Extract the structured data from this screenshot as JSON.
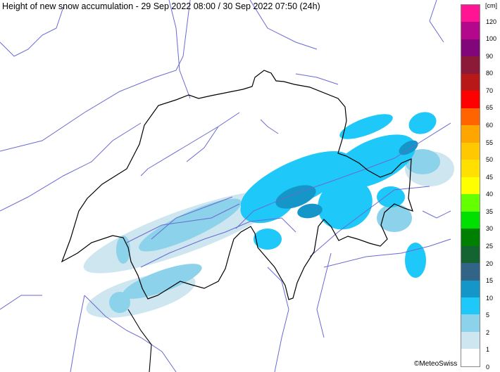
{
  "title": "Height of new snow accumulation - 29 Sep 2022 08:00 / 30 Sep 2022 07:50 (24h)",
  "credit": "©MeteoSwiss",
  "legend": {
    "unit": "[cm]",
    "bins_top_to_bottom": [
      {
        "range": ">120",
        "color": "#ff1493"
      },
      {
        "range": "100-120",
        "color": "#b4088c"
      },
      {
        "range": "90-100",
        "color": "#80067a"
      },
      {
        "range": "80-90",
        "color": "#8b1a38"
      },
      {
        "range": "70-80",
        "color": "#b81818"
      },
      {
        "range": "65-70",
        "color": "#ff0000"
      },
      {
        "range": "60-65",
        "color": "#ff6400"
      },
      {
        "range": "55-60",
        "color": "#ffa500"
      },
      {
        "range": "50-55",
        "color": "#ffc800"
      },
      {
        "range": "45-50",
        "color": "#ffe000"
      },
      {
        "range": "40-45",
        "color": "#ffff00"
      },
      {
        "range": "35-40",
        "color": "#64ff00"
      },
      {
        "range": "30-35",
        "color": "#00e000"
      },
      {
        "range": "25-30",
        "color": "#008000"
      },
      {
        "range": "20-25",
        "color": "#146432"
      },
      {
        "range": "15-20",
        "color": "#326488"
      },
      {
        "range": "10-15",
        "color": "#1496c8"
      },
      {
        "range": "5-10",
        "color": "#1ec8f8"
      },
      {
        "range": "2-5",
        "color": "#8cd2eb"
      },
      {
        "range": "1-2",
        "color": "#cde6f0"
      },
      {
        "range": "0-1",
        "color": "#ffffff"
      }
    ],
    "labels_top_to_bottom": [
      "120",
      "100",
      "90",
      "80",
      "70",
      "65",
      "60",
      "55",
      "50",
      "45",
      "40",
      "35",
      "30",
      "25",
      "20",
      "15",
      "10",
      "5",
      "2",
      "1",
      "0"
    ]
  },
  "map": {
    "border_color": "#000000",
    "region_line_color": "#6a6ad0"
  }
}
